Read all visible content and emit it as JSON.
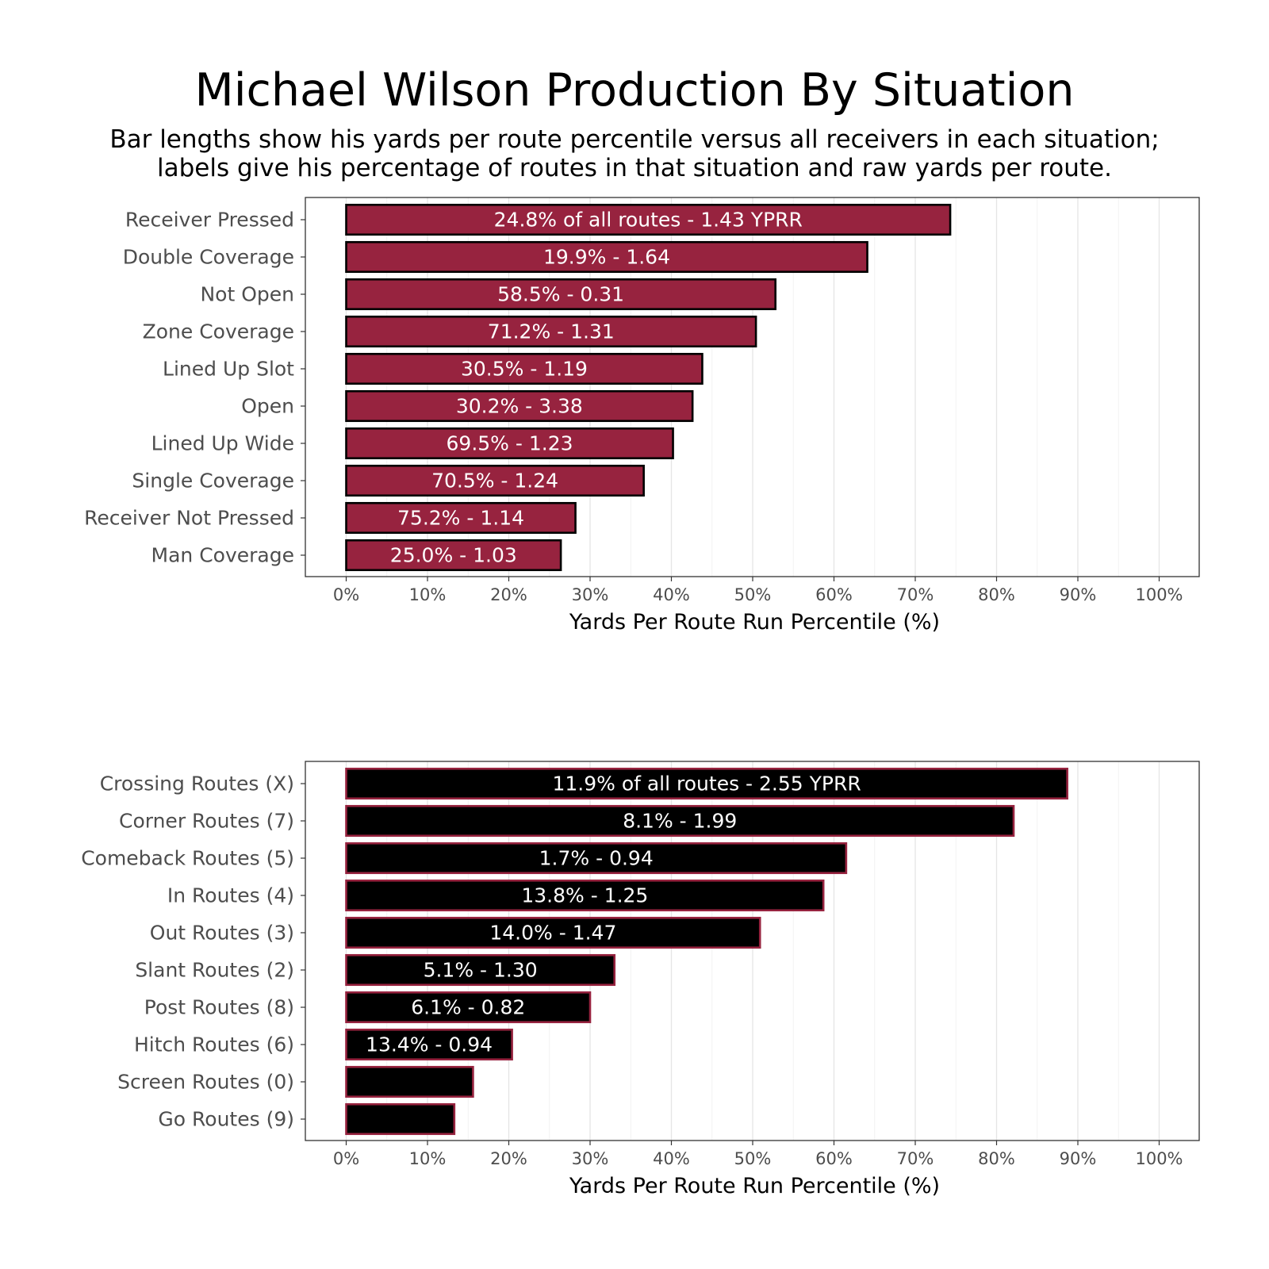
{
  "title": "Michael Wilson Production By Situation",
  "subtitle_lines": [
    "Bar lengths show his yards per route percentile versus all receivers in each situation;",
    "labels give his percentage of routes in that situation and raw yards per route."
  ],
  "colors": {
    "panel1_fill": "#97233F",
    "panel1_stroke": "#000000",
    "panel2_fill": "#000000",
    "panel2_stroke": "#97233F",
    "bar_label": "#ffffff",
    "grid": "#e5e5e5",
    "axis_text": "#4d4d4d"
  },
  "chart_data": [
    {
      "type": "bar",
      "orientation": "horizontal",
      "title": "",
      "xlabel": "Yards Per Route Run Percentile (%)",
      "ylabel": "",
      "xlim": [
        0,
        100
      ],
      "xticks": [
        "0%",
        "10%",
        "20%",
        "30%",
        "40%",
        "50%",
        "60%",
        "70%",
        "80%",
        "90%",
        "100%"
      ],
      "grid": true,
      "categories": [
        "Receiver Pressed",
        "Double Coverage",
        "Not Open",
        "Zone Coverage",
        "Lined Up Slot",
        "Open",
        "Lined Up Wide",
        "Single Coverage",
        "Receiver Not Pressed",
        "Man Coverage"
      ],
      "values": [
        74.3,
        64.1,
        52.8,
        50.4,
        43.8,
        42.6,
        40.2,
        36.6,
        28.2,
        26.4
      ],
      "bar_labels": [
        "24.8% of all routes - 1.43 YPRR",
        "19.9% - 1.64",
        "58.5% - 0.31",
        "71.2% - 1.31",
        "30.5% - 1.19",
        "30.2% - 3.38",
        "69.5% - 1.23",
        "70.5% - 1.24",
        "75.2% - 1.14",
        "25.0% - 1.03"
      ]
    },
    {
      "type": "bar",
      "orientation": "horizontal",
      "title": "",
      "xlabel": "Yards Per Route Run Percentile (%)",
      "ylabel": "",
      "xlim": [
        0,
        100
      ],
      "xticks": [
        "0%",
        "10%",
        "20%",
        "30%",
        "40%",
        "50%",
        "60%",
        "70%",
        "80%",
        "90%",
        "100%"
      ],
      "grid": true,
      "categories": [
        "Crossing Routes (X)",
        "Corner Routes (7)",
        "Comeback Routes (5)",
        "In Routes (4)",
        "Out Routes (3)",
        "Slant Routes (2)",
        "Post Routes (8)",
        "Hitch Routes (6)",
        "Screen Routes (0)",
        "Go Routes (9)"
      ],
      "values": [
        88.7,
        82.1,
        61.5,
        58.7,
        50.9,
        33.0,
        30.0,
        20.4,
        15.6,
        13.3
      ],
      "bar_labels": [
        "11.9% of all routes - 2.55 YPRR",
        "8.1% - 1.99",
        "1.7% - 0.94",
        "13.8% - 1.25",
        "14.0% - 1.47",
        "5.1% - 1.30",
        "6.1% - 0.82",
        "13.4% - 0.94",
        "",
        ""
      ]
    }
  ]
}
